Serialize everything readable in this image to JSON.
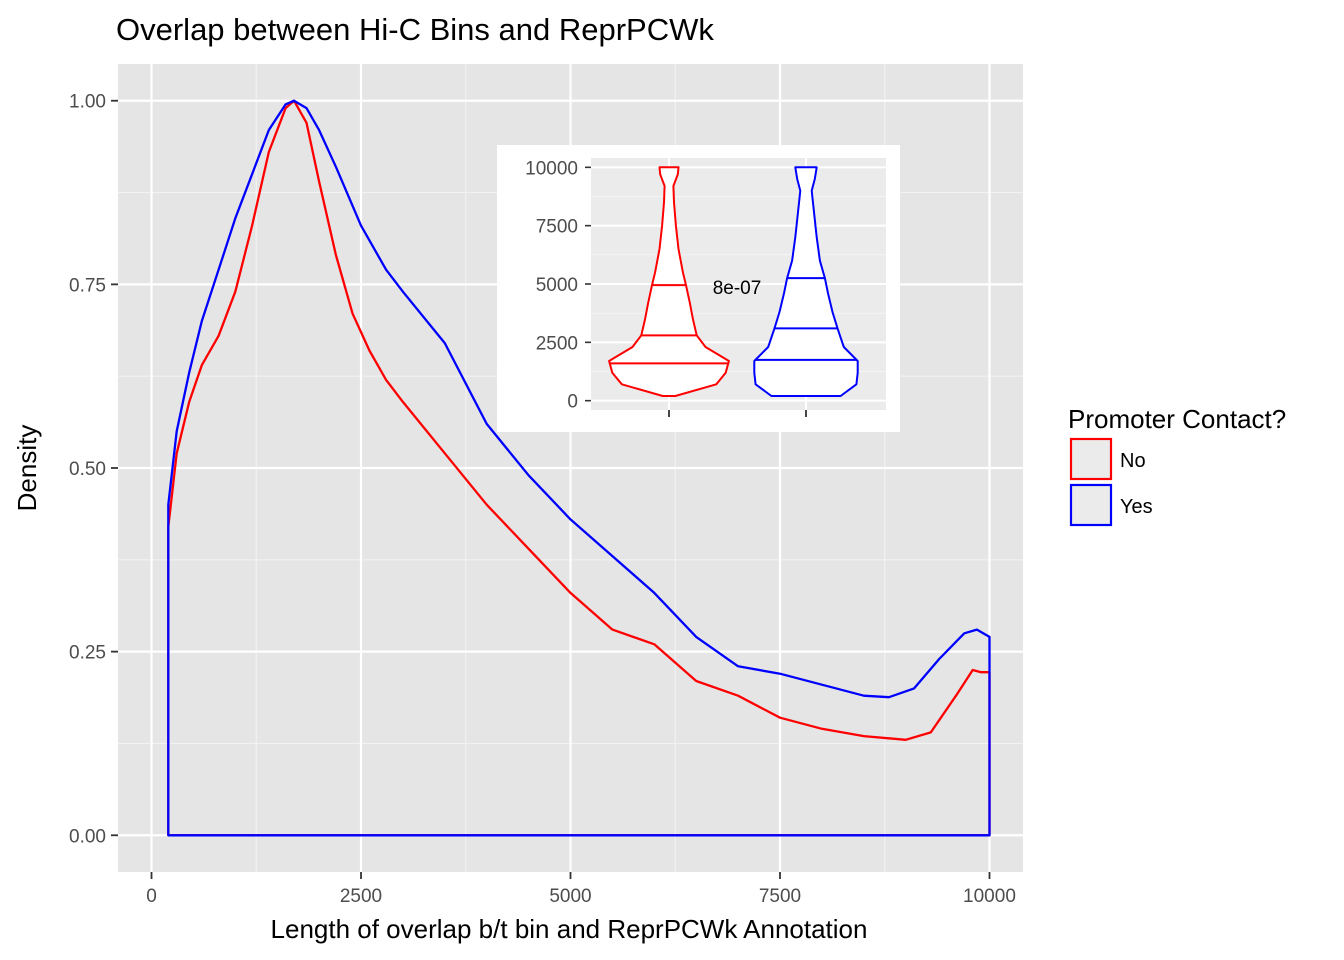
{
  "chart_data": [
    {
      "type": "area",
      "title": "Overlap between Hi-C Bins and ReprPCWk",
      "xlabel": "Length of overlap b/t bin and ReprPCWk Annotation",
      "ylabel": "Density",
      "xlim": [
        -400,
        10400
      ],
      "ylim": [
        -0.05,
        1.05
      ],
      "x_ticks": [
        0,
        2500,
        5000,
        7500,
        10000
      ],
      "x_tick_labels": [
        "0",
        "2500",
        "5000",
        "7500",
        "10000"
      ],
      "y_ticks": [
        0,
        0.25,
        0.5,
        0.75,
        1.0
      ],
      "y_tick_labels": [
        "0.00",
        "0.25",
        "0.50",
        "0.75",
        "1.00"
      ],
      "grid": true,
      "background": "#e5e5e5",
      "legend": {
        "title": "Promoter Contact?",
        "position": "right",
        "entries": [
          {
            "label": "No",
            "color": "#ff0000"
          },
          {
            "label": "Yes",
            "color": "#0000ff"
          }
        ]
      },
      "series": [
        {
          "name": "No",
          "color": "#ff0000",
          "x": [
            200,
            300,
            450,
            600,
            800,
            1000,
            1200,
            1400,
            1600,
            1700,
            1850,
            2000,
            2200,
            2400,
            2600,
            2800,
            3000,
            3500,
            4000,
            4500,
            5000,
            5500,
            6000,
            6500,
            7000,
            7500,
            8000,
            8500,
            9000,
            9300,
            9600,
            9800,
            9900,
            10000
          ],
          "values": [
            0.42,
            0.52,
            0.59,
            0.64,
            0.68,
            0.74,
            0.83,
            0.93,
            0.99,
            1.0,
            0.97,
            0.89,
            0.79,
            0.71,
            0.66,
            0.62,
            0.59,
            0.52,
            0.45,
            0.39,
            0.33,
            0.28,
            0.26,
            0.21,
            0.19,
            0.16,
            0.145,
            0.135,
            0.13,
            0.14,
            0.19,
            0.225,
            0.222,
            0.222
          ]
        },
        {
          "name": "Yes",
          "color": "#0000ff",
          "x": [
            200,
            300,
            450,
            600,
            800,
            1000,
            1200,
            1400,
            1600,
            1700,
            1850,
            2000,
            2200,
            2500,
            2800,
            3000,
            3500,
            4000,
            4500,
            5000,
            5500,
            6000,
            6500,
            7000,
            7500,
            8000,
            8500,
            8800,
            9100,
            9400,
            9700,
            9850,
            10000
          ],
          "values": [
            0.45,
            0.55,
            0.63,
            0.7,
            0.77,
            0.84,
            0.9,
            0.96,
            0.995,
            1.0,
            0.99,
            0.96,
            0.91,
            0.83,
            0.77,
            0.74,
            0.67,
            0.56,
            0.49,
            0.43,
            0.38,
            0.33,
            0.27,
            0.23,
            0.22,
            0.205,
            0.19,
            0.188,
            0.2,
            0.24,
            0.275,
            0.28,
            0.27
          ]
        }
      ]
    },
    {
      "type": "violin",
      "annotation": "8e-07",
      "ylim": [
        -400,
        10400
      ],
      "y_ticks": [
        0,
        2500,
        5000,
        7500,
        10000
      ],
      "y_tick_labels": [
        "0",
        "2500",
        "5000",
        "7500",
        "10000"
      ],
      "background": "#ebebeb",
      "series": [
        {
          "name": "No",
          "color": "#ff0000",
          "quantiles": [
            1600,
            2800,
            4950
          ],
          "y": [
            200,
            700,
            1200,
            1700,
            2300,
            2800,
            3500,
            4200,
            4950,
            5500,
            6500,
            7500,
            8500,
            9200,
            9700,
            10000
          ],
          "half_width": [
            0.1,
            0.75,
            0.9,
            0.95,
            0.58,
            0.44,
            0.38,
            0.33,
            0.27,
            0.22,
            0.15,
            0.11,
            0.08,
            0.07,
            0.14,
            0.15
          ]
        },
        {
          "name": "Yes",
          "color": "#0000ff",
          "quantiles": [
            1750,
            3100,
            5250
          ],
          "y": [
            200,
            700,
            1200,
            1700,
            2300,
            3100,
            3800,
            4600,
            5250,
            6000,
            7000,
            8000,
            9000,
            9500,
            10000
          ],
          "half_width": [
            0.55,
            0.8,
            0.82,
            0.82,
            0.6,
            0.5,
            0.42,
            0.35,
            0.3,
            0.22,
            0.17,
            0.13,
            0.09,
            0.14,
            0.17
          ]
        }
      ]
    }
  ]
}
